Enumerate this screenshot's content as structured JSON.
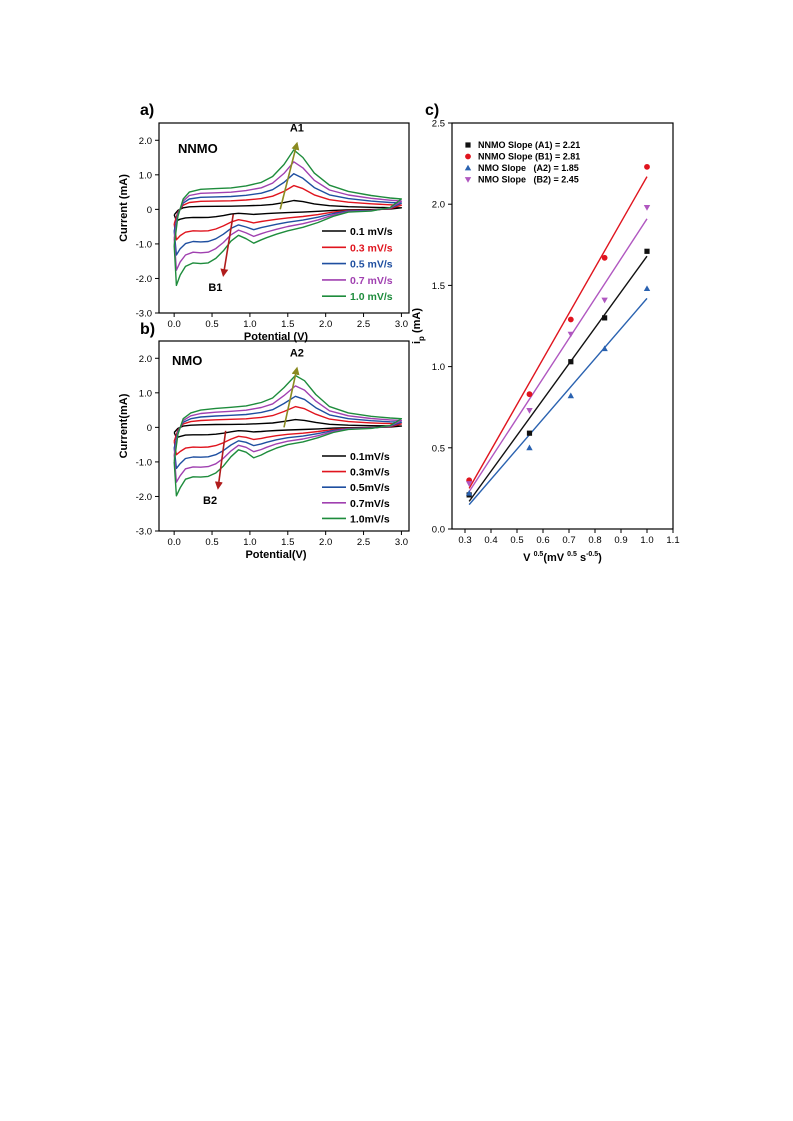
{
  "chart_data": [
    {
      "panel_label": "a)",
      "type": "line",
      "annotation": "NNMO",
      "xlabel": "Potential (V)",
      "ylabel": "Current (mA)",
      "xlim": [
        -0.2,
        3.1
      ],
      "ylim": [
        -3.0,
        2.5
      ],
      "xticks": [
        "0.0",
        "0.5",
        "1.0",
        "1.5",
        "2.0",
        "2.5",
        "3.0"
      ],
      "yticks": [
        "-3.0",
        "-2.0",
        "-1.0",
        "0",
        "1.0",
        "2.0"
      ],
      "legend": "bottom-right",
      "series": [
        {
          "name": "0.1 mV/s",
          "color": "#000000",
          "scale": 0.15
        },
        {
          "name": "0.3 mV/s",
          "color": "#e0141e",
          "scale": 0.4
        },
        {
          "name": "0.5 mV/s",
          "color": "#1f4fa0",
          "scale": 0.6
        },
        {
          "name": "0.7 mV/s",
          "color": "#a040b0",
          "scale": 0.8
        },
        {
          "name": "1.0 mV/s",
          "color": "#1e8c3c",
          "scale": 1.0
        }
      ],
      "template_anodic": [
        [
          0.0,
          -1.05
        ],
        [
          0.05,
          -0.2
        ],
        [
          0.12,
          0.3
        ],
        [
          0.2,
          0.5
        ],
        [
          0.35,
          0.58
        ],
        [
          0.55,
          0.6
        ],
        [
          0.75,
          0.62
        ],
        [
          0.95,
          0.68
        ],
        [
          1.15,
          0.78
        ],
        [
          1.3,
          0.95
        ],
        [
          1.45,
          1.3
        ],
        [
          1.58,
          1.72
        ],
        [
          1.7,
          1.5
        ],
        [
          1.85,
          1.05
        ],
        [
          2.05,
          0.7
        ],
        [
          2.3,
          0.52
        ],
        [
          2.6,
          0.4
        ],
        [
          2.85,
          0.33
        ],
        [
          3.0,
          0.3
        ]
      ],
      "template_cathodic": [
        [
          3.0,
          0.3
        ],
        [
          2.85,
          0.05
        ],
        [
          2.6,
          -0.05
        ],
        [
          2.3,
          -0.08
        ],
        [
          2.1,
          -0.2
        ],
        [
          1.9,
          -0.38
        ],
        [
          1.7,
          -0.52
        ],
        [
          1.5,
          -0.62
        ],
        [
          1.35,
          -0.72
        ],
        [
          1.22,
          -0.82
        ],
        [
          1.15,
          -0.88
        ],
        [
          1.05,
          -0.98
        ],
        [
          0.95,
          -0.85
        ],
        [
          0.85,
          -0.75
        ],
        [
          0.75,
          -0.92
        ],
        [
          0.65,
          -1.2
        ],
        [
          0.55,
          -1.42
        ],
        [
          0.45,
          -1.55
        ],
        [
          0.35,
          -1.57
        ],
        [
          0.25,
          -1.55
        ],
        [
          0.15,
          -1.65
        ],
        [
          0.08,
          -1.9
        ],
        [
          0.03,
          -2.2
        ],
        [
          0.0,
          -1.05
        ]
      ],
      "arrows": [
        {
          "label": "A1",
          "color": "#8a8a20",
          "from": [
            1.4,
            0.0
          ],
          "to": [
            1.62,
            1.9
          ]
        },
        {
          "label": "B1",
          "color": "#b01c1c",
          "from": [
            0.78,
            -0.15
          ],
          "to": [
            0.65,
            -1.9
          ]
        }
      ]
    },
    {
      "panel_label": "b)",
      "type": "line",
      "annotation": "NMO",
      "xlabel": "Potential(V)",
      "ylabel": "Current(mA)",
      "xlim": [
        -0.2,
        3.1
      ],
      "ylim": [
        -3.0,
        2.5
      ],
      "xticks": [
        "0.0",
        "0.5",
        "1.0",
        "1.5",
        "2.0",
        "2.5",
        "3.0"
      ],
      "yticks": [
        "-3.0",
        "-2.0",
        "-1.0",
        "0",
        "1.0",
        "2.0"
      ],
      "legend": "bottom-right",
      "series": [
        {
          "name": "0.1mV/s",
          "color": "#000000",
          "scale": 0.15
        },
        {
          "name": "0.3mV/s",
          "color": "#e0141e",
          "scale": 0.4
        },
        {
          "name": "0.5mV/s",
          "color": "#1f4fa0",
          "scale": 0.6
        },
        {
          "name": "0.7mV/s",
          "color": "#a040b0",
          "scale": 0.8
        },
        {
          "name": "1.0mV/s",
          "color": "#1e8c3c",
          "scale": 1.0
        }
      ],
      "template_anodic": [
        [
          0.0,
          -1.0
        ],
        [
          0.05,
          -0.2
        ],
        [
          0.12,
          0.25
        ],
        [
          0.22,
          0.42
        ],
        [
          0.35,
          0.5
        ],
        [
          0.55,
          0.55
        ],
        [
          0.75,
          0.58
        ],
        [
          0.95,
          0.62
        ],
        [
          1.15,
          0.72
        ],
        [
          1.3,
          0.85
        ],
        [
          1.45,
          1.15
        ],
        [
          1.6,
          1.5
        ],
        [
          1.72,
          1.35
        ],
        [
          1.87,
          0.95
        ],
        [
          2.05,
          0.6
        ],
        [
          2.3,
          0.42
        ],
        [
          2.6,
          0.32
        ],
        [
          2.85,
          0.27
        ],
        [
          3.0,
          0.25
        ]
      ],
      "template_cathodic": [
        [
          3.0,
          0.25
        ],
        [
          2.85,
          0.05
        ],
        [
          2.6,
          -0.03
        ],
        [
          2.3,
          -0.06
        ],
        [
          2.1,
          -0.15
        ],
        [
          1.9,
          -0.3
        ],
        [
          1.7,
          -0.42
        ],
        [
          1.5,
          -0.5
        ],
        [
          1.35,
          -0.6
        ],
        [
          1.22,
          -0.72
        ],
        [
          1.15,
          -0.8
        ],
        [
          1.05,
          -0.88
        ],
        [
          0.95,
          -0.72
        ],
        [
          0.85,
          -0.65
        ],
        [
          0.75,
          -0.85
        ],
        [
          0.65,
          -1.12
        ],
        [
          0.55,
          -1.32
        ],
        [
          0.45,
          -1.42
        ],
        [
          0.35,
          -1.44
        ],
        [
          0.25,
          -1.43
        ],
        [
          0.15,
          -1.5
        ],
        [
          0.08,
          -1.75
        ],
        [
          0.03,
          -1.98
        ],
        [
          0.0,
          -1.0
        ]
      ],
      "arrows": [
        {
          "label": "A2",
          "color": "#8a8a20",
          "from": [
            1.45,
            0.0
          ],
          "to": [
            1.62,
            1.7
          ]
        },
        {
          "label": "B2",
          "color": "#b01c1c",
          "from": [
            0.68,
            -0.1
          ],
          "to": [
            0.58,
            -1.75
          ]
        }
      ]
    },
    {
      "panel_label": "c)",
      "type": "scatter",
      "xlabel": "V 0.5 (mV 0.5 s -0.5)",
      "ylabel": "i p (mA)",
      "xlim": [
        0.25,
        1.1
      ],
      "ylim": [
        0.0,
        2.5
      ],
      "xticks": [
        "0.3",
        "0.4",
        "0.5",
        "0.6",
        "0.7",
        "0.8",
        "0.9",
        "1.0",
        "1.1"
      ],
      "yticks": [
        "0.0",
        "0.5",
        "1.0",
        "1.5",
        "2.0",
        "2.5"
      ],
      "legend": "top-left",
      "x": [
        0.316,
        0.548,
        0.707,
        0.837,
        1.0
      ],
      "series": [
        {
          "name": "NNMO Slope (A1) = 2.21",
          "color": "#111111",
          "marker": "square",
          "values": [
            0.21,
            0.59,
            1.03,
            1.3,
            1.71
          ],
          "fit": [
            [
              0.316,
              0.17
            ],
            [
              1.0,
              1.68
            ]
          ]
        },
        {
          "name": "NNMO Slope (B1) = 2.81",
          "color": "#e0141e",
          "marker": "circle",
          "values": [
            0.3,
            0.83,
            1.29,
            1.67,
            2.23
          ],
          "fit": [
            [
              0.316,
              0.25
            ],
            [
              1.0,
              2.17
            ]
          ]
        },
        {
          "name": "NMO Slope   (A2) = 1.85",
          "color": "#2a62b0",
          "marker": "triangle-up",
          "values": [
            0.22,
            0.5,
            0.82,
            1.11,
            1.48
          ],
          "fit": [
            [
              0.316,
              0.15
            ],
            [
              1.0,
              1.42
            ]
          ]
        },
        {
          "name": "NMO Slope   (B2) = 2.45",
          "color": "#b057c0",
          "marker": "triangle-down",
          "values": [
            0.28,
            0.73,
            1.2,
            1.41,
            1.98
          ],
          "fit": [
            [
              0.316,
              0.23
            ],
            [
              1.0,
              1.91
            ]
          ]
        }
      ]
    }
  ]
}
